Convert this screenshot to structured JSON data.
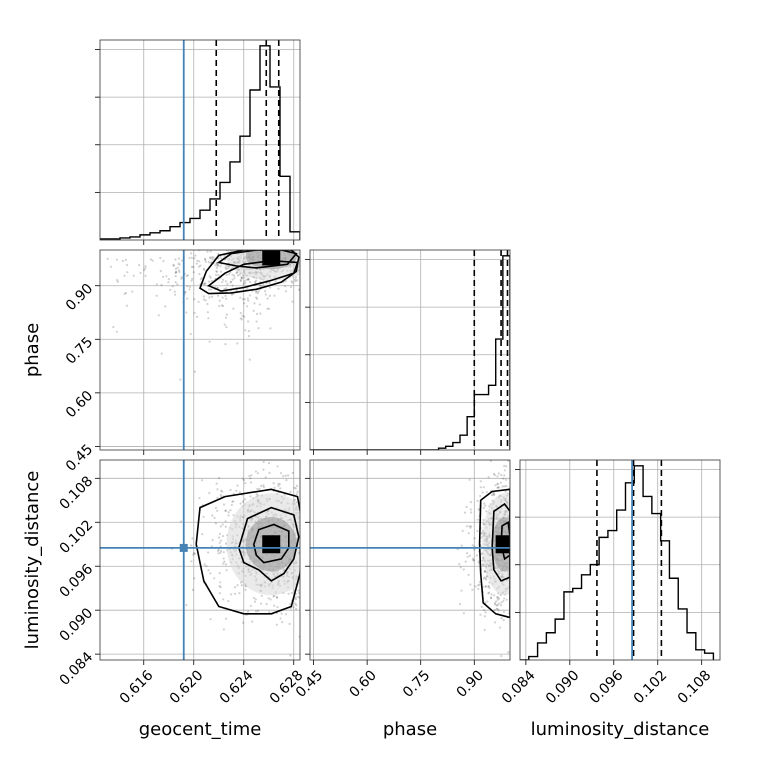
{
  "chart_data": {
    "type": "corner",
    "parameters": [
      {
        "key": "geocent_time",
        "label": "geocent_time",
        "range": [
          0.6125,
          0.6285
        ],
        "ticks": [
          0.616,
          0.62,
          0.624,
          0.628
        ],
        "tick_labels": [
          "0.616",
          "0.620",
          "0.624",
          "0.628"
        ],
        "truth": 0.6192,
        "quantiles": [
          0.6218,
          0.6258,
          0.6268
        ],
        "hist": {
          "edges": [
            0.6125,
            0.6133,
            0.6141,
            0.6149,
            0.6157,
            0.6165,
            0.6173,
            0.6181,
            0.6189,
            0.6197,
            0.6205,
            0.6213,
            0.6221,
            0.6229,
            0.6237,
            0.6245,
            0.6253,
            0.6261,
            0.6269,
            0.6277,
            0.6285
          ],
          "counts": [
            1,
            1,
            2,
            3,
            5,
            7,
            9,
            13,
            17,
            21,
            29,
            40,
            56,
            76,
            101,
            146,
            189,
            149,
            62,
            8
          ]
        }
      },
      {
        "key": "phase",
        "label": "phase",
        "range": [
          0.44,
          1.0
        ],
        "ticks": [
          0.45,
          0.6,
          0.75,
          0.9
        ],
        "tick_labels": [
          "0.45",
          "0.60",
          "0.75",
          "0.90"
        ],
        "truth": null,
        "quantiles": [
          0.9,
          0.975,
          0.993
        ],
        "hist": {
          "edges": [
            0.44,
            0.46,
            0.48,
            0.5,
            0.52,
            0.54,
            0.56,
            0.58,
            0.6,
            0.62,
            0.64,
            0.66,
            0.68,
            0.7,
            0.72,
            0.74,
            0.76,
            0.78,
            0.8,
            0.82,
            0.84,
            0.86,
            0.88,
            0.9,
            0.92,
            0.94,
            0.96,
            0.98,
            1.0
          ],
          "counts": [
            0,
            0,
            0,
            0,
            0,
            0,
            0,
            0,
            0,
            0,
            0,
            0,
            0,
            0,
            0,
            0,
            0,
            0,
            1,
            2,
            4,
            8,
            18,
            30,
            30,
            35,
            60,
            105
          ]
        }
      },
      {
        "key": "luminosity_distance",
        "label": "luminosity_distance",
        "range": [
          0.0832,
          0.1105
        ],
        "ticks": [
          0.084,
          0.09,
          0.096,
          0.102,
          0.108
        ],
        "tick_labels": [
          "0.084",
          "0.090",
          "0.096",
          "0.102",
          "0.108"
        ],
        "truth": 0.0985,
        "quantiles": [
          0.0937,
          0.0987,
          0.1025
        ],
        "hist": {
          "edges": [
            0.0832,
            0.0844,
            0.0856,
            0.0868,
            0.088,
            0.0892,
            0.0904,
            0.0916,
            0.0928,
            0.094,
            0.0952,
            0.0964,
            0.0976,
            0.0988,
            0.1,
            0.1012,
            0.1024,
            0.1036,
            0.1048,
            0.106,
            0.1072,
            0.1084,
            0.1096
          ],
          "counts": [
            0,
            1,
            5,
            8,
            12,
            20,
            21,
            25,
            28,
            36,
            38,
            44,
            52,
            57,
            48,
            43,
            35,
            24,
            15,
            8,
            3,
            2
          ]
        }
      }
    ],
    "pairs": [
      {
        "x": "geocent_time",
        "y": "phase",
        "core": [
          0.6262,
          0.982
        ],
        "contours": [
          [
            [
              0.622,
              0.965
            ],
            [
              0.623,
              0.99
            ],
            [
              0.625,
              1.0
            ],
            [
              0.627,
              1.0
            ],
            [
              0.6282,
              0.99
            ],
            [
              0.6275,
              0.96
            ],
            [
              0.625,
              0.95
            ],
            [
              0.6235,
              0.955
            ]
          ],
          [
            [
              0.6212,
              0.9
            ],
            [
              0.6225,
              0.935
            ],
            [
              0.624,
              0.96
            ],
            [
              0.6262,
              0.97
            ],
            [
              0.6283,
              0.965
            ],
            [
              0.628,
              0.935
            ],
            [
              0.6262,
              0.915
            ],
            [
              0.624,
              0.895
            ],
            [
              0.6222,
              0.885
            ]
          ],
          [
            [
              0.6205,
              0.893
            ],
            [
              0.621,
              0.94
            ],
            [
              0.622,
              0.985
            ],
            [
              0.624,
              1.0
            ],
            [
              0.6278,
              1.0
            ],
            [
              0.6284,
              0.98
            ],
            [
              0.6282,
              0.94
            ],
            [
              0.627,
              0.91
            ],
            [
              0.625,
              0.89
            ],
            [
              0.623,
              0.88
            ],
            [
              0.6212,
              0.878
            ]
          ]
        ]
      },
      {
        "x": "geocent_time",
        "y": "luminosity_distance",
        "core": [
          0.6262,
          0.099
        ],
        "contours": [
          [
            [
              0.6248,
              0.099
            ],
            [
              0.6252,
              0.101
            ],
            [
              0.6264,
              0.1017
            ],
            [
              0.6276,
              0.1008
            ],
            [
              0.6276,
              0.0985
            ],
            [
              0.627,
              0.097
            ],
            [
              0.6256,
              0.0965
            ],
            [
              0.625,
              0.0975
            ]
          ],
          [
            [
              0.6236,
              0.0985
            ],
            [
              0.6243,
              0.1025
            ],
            [
              0.6262,
              0.104
            ],
            [
              0.628,
              0.103
            ],
            [
              0.6284,
              0.1
            ],
            [
              0.628,
              0.097
            ],
            [
              0.6272,
              0.095
            ],
            [
              0.6262,
              0.094
            ],
            [
              0.6252,
              0.0955
            ],
            [
              0.624,
              0.0965
            ]
          ],
          [
            [
              0.6202,
              0.099
            ],
            [
              0.6205,
              0.104
            ],
            [
              0.6225,
              0.1055
            ],
            [
              0.6262,
              0.1065
            ],
            [
              0.6283,
              0.1055
            ],
            [
              0.6288,
              0.101
            ],
            [
              0.6285,
              0.095
            ],
            [
              0.6278,
              0.0905
            ],
            [
              0.6262,
              0.0895
            ],
            [
              0.624,
              0.0895
            ],
            [
              0.622,
              0.0905
            ],
            [
              0.6208,
              0.094
            ]
          ]
        ]
      },
      {
        "x": "phase",
        "y": "luminosity_distance",
        "core": [
          0.985,
          0.099
        ],
        "contours": [
          [
            [
              0.975,
              0.099
            ],
            [
              0.978,
              0.1015
            ],
            [
              0.995,
              0.102
            ],
            [
              1.0,
              0.1
            ],
            [
              1.0,
              0.0975
            ],
            [
              0.985,
              0.097
            ]
          ],
          [
            [
              0.95,
              0.0985
            ],
            [
              0.955,
              0.1035
            ],
            [
              0.985,
              0.1045
            ],
            [
              1.0,
              0.1035
            ],
            [
              1.0,
              0.0945
            ],
            [
              0.975,
              0.094
            ],
            [
              0.955,
              0.0955
            ]
          ],
          [
            [
              0.915,
              0.099
            ],
            [
              0.918,
              0.105
            ],
            [
              0.95,
              0.1062
            ],
            [
              1.0,
              0.1065
            ],
            [
              1.0,
              0.089
            ],
            [
              0.96,
              0.0895
            ],
            [
              0.925,
              0.091
            ],
            [
              0.918,
              0.095
            ]
          ]
        ]
      }
    ],
    "grid": true,
    "truth_color": "#4682b4",
    "hist_color": "#000000"
  }
}
